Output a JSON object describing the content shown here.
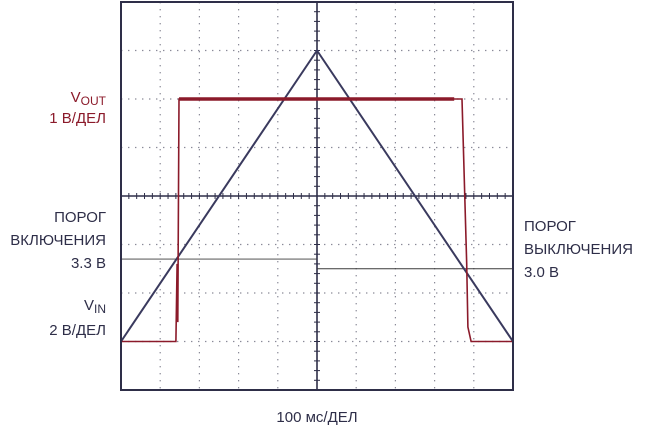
{
  "chart_data": {
    "type": "line",
    "xlabel": "100 мс/ДЕЛ",
    "grid": true,
    "x_divisions": 10,
    "y_divisions": 8,
    "x_range": [
      0,
      1000
    ],
    "x_unit": "мс",
    "vout": {
      "label_main": "V",
      "label_sub": "OUT",
      "scale": "1 В/ДЕЛ",
      "color": "#8b1a2a",
      "x": [
        0,
        140,
        143,
        145,
        148,
        850,
        870,
        882,
        885,
        893,
        910,
        1000
      ],
      "y_div": [
        -3.0,
        -3.0,
        -1.4,
        -2.6,
        2.0,
        2.0,
        2.0,
        -1.4,
        -2.7,
        -3.0,
        -3.0,
        -3.0
      ]
    },
    "vin": {
      "label_main": "V",
      "label_sub": "IN",
      "scale": "2 В/ДЕЛ",
      "color": "#3a3a5e",
      "x": [
        0,
        500,
        1000
      ],
      "y_div": [
        -3.0,
        3.0,
        -3.0
      ]
    },
    "on_threshold": {
      "line1": "ПОРОГ",
      "line2": "ВКЛЮЧЕНИЯ",
      "value": "3.3 В",
      "y_div": -1.3
    },
    "off_threshold": {
      "line1": "ПОРОГ",
      "line2": "ВЫКЛЮЧЕНИЯ",
      "value": "3.0 В",
      "y_div": -1.5
    }
  }
}
